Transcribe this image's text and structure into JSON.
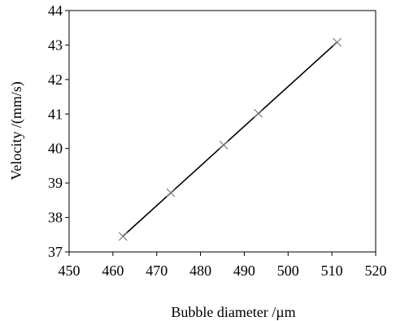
{
  "chart_data": {
    "type": "scatter",
    "xlabel": "Bubble diameter /µm",
    "ylabel": "Velocity /(mm/s)",
    "xlim": [
      450,
      520
    ],
    "ylim": [
      37,
      44
    ],
    "x_ticks": [
      "450",
      "460",
      "470",
      "480",
      "490",
      "500",
      "510",
      "520"
    ],
    "y_ticks": [
      "37",
      "38",
      "39",
      "40",
      "41",
      "42",
      "43",
      "44"
    ],
    "grid": false,
    "legend": "none",
    "series": [
      {
        "marker": "x",
        "color": "#808080",
        "trendline": "linear",
        "x": [
          462.3,
          473.2,
          485.3,
          493.2,
          511.2
        ],
        "y": [
          37.45,
          38.72,
          40.1,
          41.02,
          43.08
        ]
      }
    ]
  }
}
